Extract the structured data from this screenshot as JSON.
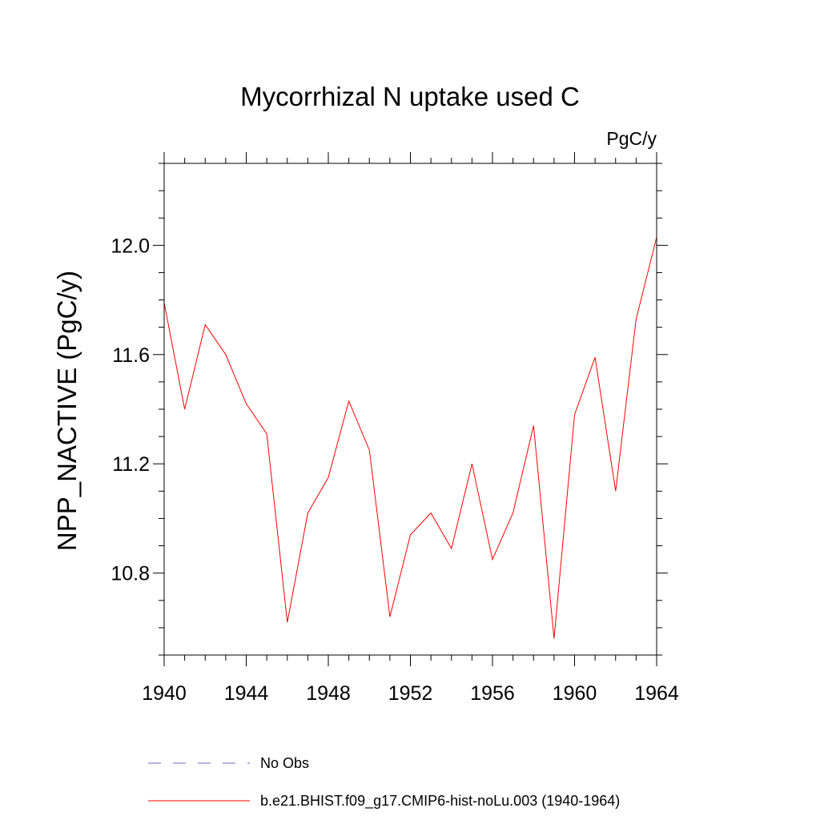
{
  "chart_data": {
    "type": "line",
    "title": "Mycorrhizal N uptake used C",
    "units": "PgC/y",
    "ylabel": "NPP_NACTIVE  (PgC/y)",
    "xlabel": "",
    "xlim": [
      1940,
      1964
    ],
    "ylim": [
      10.5,
      12.3
    ],
    "x_ticks": [
      1940,
      1944,
      1948,
      1952,
      1956,
      1960,
      1964
    ],
    "y_ticks": [
      10.8,
      11.2,
      11.6,
      12.0
    ],
    "x_tick_labels": [
      "1940",
      "1944",
      "1948",
      "1952",
      "1956",
      "1960",
      "1964"
    ],
    "y_tick_labels": [
      "10.8",
      "11.2",
      "11.6",
      "12.0"
    ],
    "grid": false,
    "legend_placement": "bottom",
    "series": [
      {
        "name": "b.e21.BHIST.f09_g17.CMIP6-hist-noLu.003 (1940-1964)",
        "color": "#ff0000",
        "dash": "solid",
        "x": [
          1940,
          1941,
          1942,
          1943,
          1944,
          1945,
          1946,
          1947,
          1948,
          1949,
          1950,
          1951,
          1952,
          1953,
          1954,
          1955,
          1956,
          1957,
          1958,
          1959,
          1960,
          1961,
          1962,
          1963,
          1964
        ],
        "y": [
          11.79,
          11.4,
          11.71,
          11.6,
          11.42,
          11.31,
          10.62,
          11.02,
          11.15,
          11.43,
          11.25,
          10.64,
          10.94,
          11.02,
          10.89,
          11.2,
          10.85,
          11.02,
          11.34,
          10.56,
          11.38,
          11.59,
          11.1,
          11.73,
          12.03
        ]
      }
    ],
    "legend": [
      {
        "label": "No Obs",
        "color": "#6666cc",
        "dash": "dashed"
      },
      {
        "label": "b.e21.BHIST.f09_g17.CMIP6-hist-noLu.003 (1940-1964)",
        "color": "#ff0000",
        "dash": "solid"
      }
    ]
  }
}
